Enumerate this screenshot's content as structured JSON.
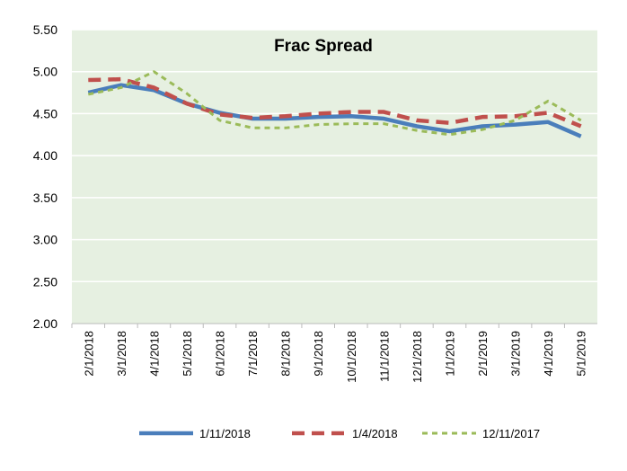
{
  "chart_data": {
    "type": "line",
    "title": "Frac Spread",
    "xlabel": "",
    "ylabel": "",
    "ylim": [
      2.0,
      5.5
    ],
    "yticks": [
      "2.00",
      "2.50",
      "3.00",
      "3.50",
      "4.00",
      "4.50",
      "5.00",
      "5.50"
    ],
    "grid": true,
    "legend_position": "bottom",
    "categories": [
      "2/1/2018",
      "3/1/2018",
      "4/1/2018",
      "5/1/2018",
      "6/1/2018",
      "7/1/2018",
      "8/1/2018",
      "9/1/2018",
      "10/1/2018",
      "11/1/2018",
      "12/1/2018",
      "1/1/2019",
      "2/1/2019",
      "3/1/2019",
      "4/1/2019",
      "5/1/2019"
    ],
    "series": [
      {
        "name": "1/11/2018",
        "color": "#4a7ebb",
        "style": "solid",
        "values": [
          4.75,
          4.84,
          4.78,
          4.62,
          4.51,
          4.44,
          4.44,
          4.46,
          4.47,
          4.44,
          4.35,
          4.29,
          4.35,
          4.37,
          4.4,
          4.23
        ]
      },
      {
        "name": "1/4/2018",
        "color": "#c0504d",
        "style": "dashed",
        "values": [
          4.9,
          4.91,
          4.81,
          4.62,
          4.49,
          4.45,
          4.47,
          4.5,
          4.52,
          4.52,
          4.42,
          4.39,
          4.46,
          4.47,
          4.51,
          4.35
        ]
      },
      {
        "name": "12/11/2017",
        "color": "#9bbb59",
        "style": "dotted",
        "values": [
          4.73,
          4.81,
          5.0,
          4.74,
          4.42,
          4.33,
          4.33,
          4.37,
          4.38,
          4.38,
          4.3,
          4.25,
          4.31,
          4.42,
          4.65,
          4.42
        ]
      }
    ]
  }
}
